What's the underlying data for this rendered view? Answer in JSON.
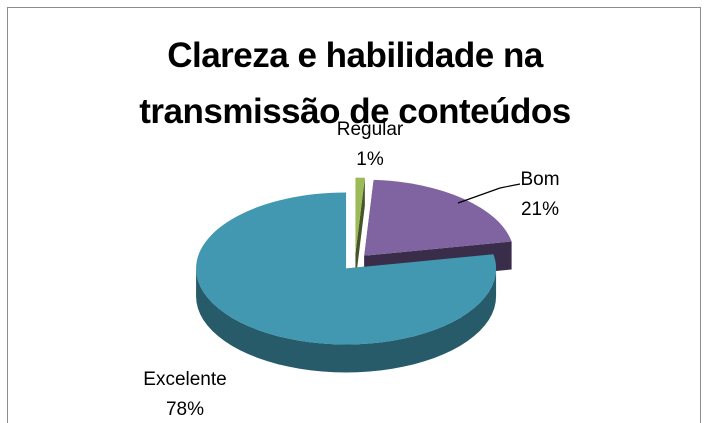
{
  "chart_data": {
    "type": "pie",
    "title": "Clareza e habilidade na transmissão de conteúdos",
    "categories": [
      "Regular",
      "Bom",
      "Excelente"
    ],
    "values": [
      1,
      21,
      78
    ],
    "value_labels": [
      "1%",
      "21%",
      "78%"
    ],
    "colors": [
      "#9bbb59",
      "#8064a2",
      "#4198b0"
    ]
  }
}
